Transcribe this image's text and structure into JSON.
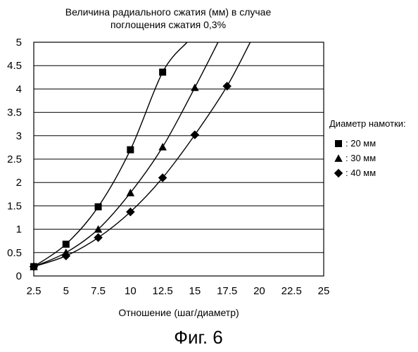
{
  "chart_data": {
    "type": "line",
    "title_lines": [
      "Величина радиального сжатия (мм) в случае",
      "поглощения сжатия 0,3%"
    ],
    "xlabel": "Отношение (шаг/диаметр)",
    "ylabel": "",
    "x_tick_labels": [
      "2.5",
      "5",
      "7.5",
      "10",
      "12.5",
      "15",
      "17.5",
      "20",
      "22.5",
      "25"
    ],
    "y_tick_labels": [
      "0",
      "0.5",
      "1",
      "1.5",
      "2",
      "2.5",
      "3",
      "3.5",
      "4",
      "4.5",
      "5"
    ],
    "xlim": [
      2.5,
      25
    ],
    "ylim": [
      0,
      5
    ],
    "grid": "horizontal",
    "legend_position": "right",
    "legend_title": "Диаметр намотки:",
    "series": [
      {
        "name": ": 20 мм",
        "marker": "square",
        "x": [
          2.5,
          5,
          7.5,
          10,
          12.5
        ],
        "y": [
          0.2,
          0.68,
          1.48,
          2.7,
          4.36
        ],
        "curve_end": {
          "x": 14.4,
          "y": 5
        }
      },
      {
        "name": ": 30 мм",
        "marker": "triangle",
        "x": [
          2.5,
          5,
          7.5,
          10,
          12.5,
          15
        ],
        "y": [
          0.2,
          0.5,
          1.0,
          1.78,
          2.76,
          4.03
        ],
        "curve_end": {
          "x": 16.8,
          "y": 5
        }
      },
      {
        "name": ": 40 мм",
        "marker": "diamond",
        "x": [
          2.5,
          5,
          7.5,
          10,
          12.5,
          15,
          17.5
        ],
        "y": [
          0.2,
          0.43,
          0.82,
          1.37,
          2.1,
          3.02,
          4.06
        ],
        "curve_end": {
          "x": 19.3,
          "y": 5
        }
      }
    ]
  },
  "caption": "Фиг. 6"
}
